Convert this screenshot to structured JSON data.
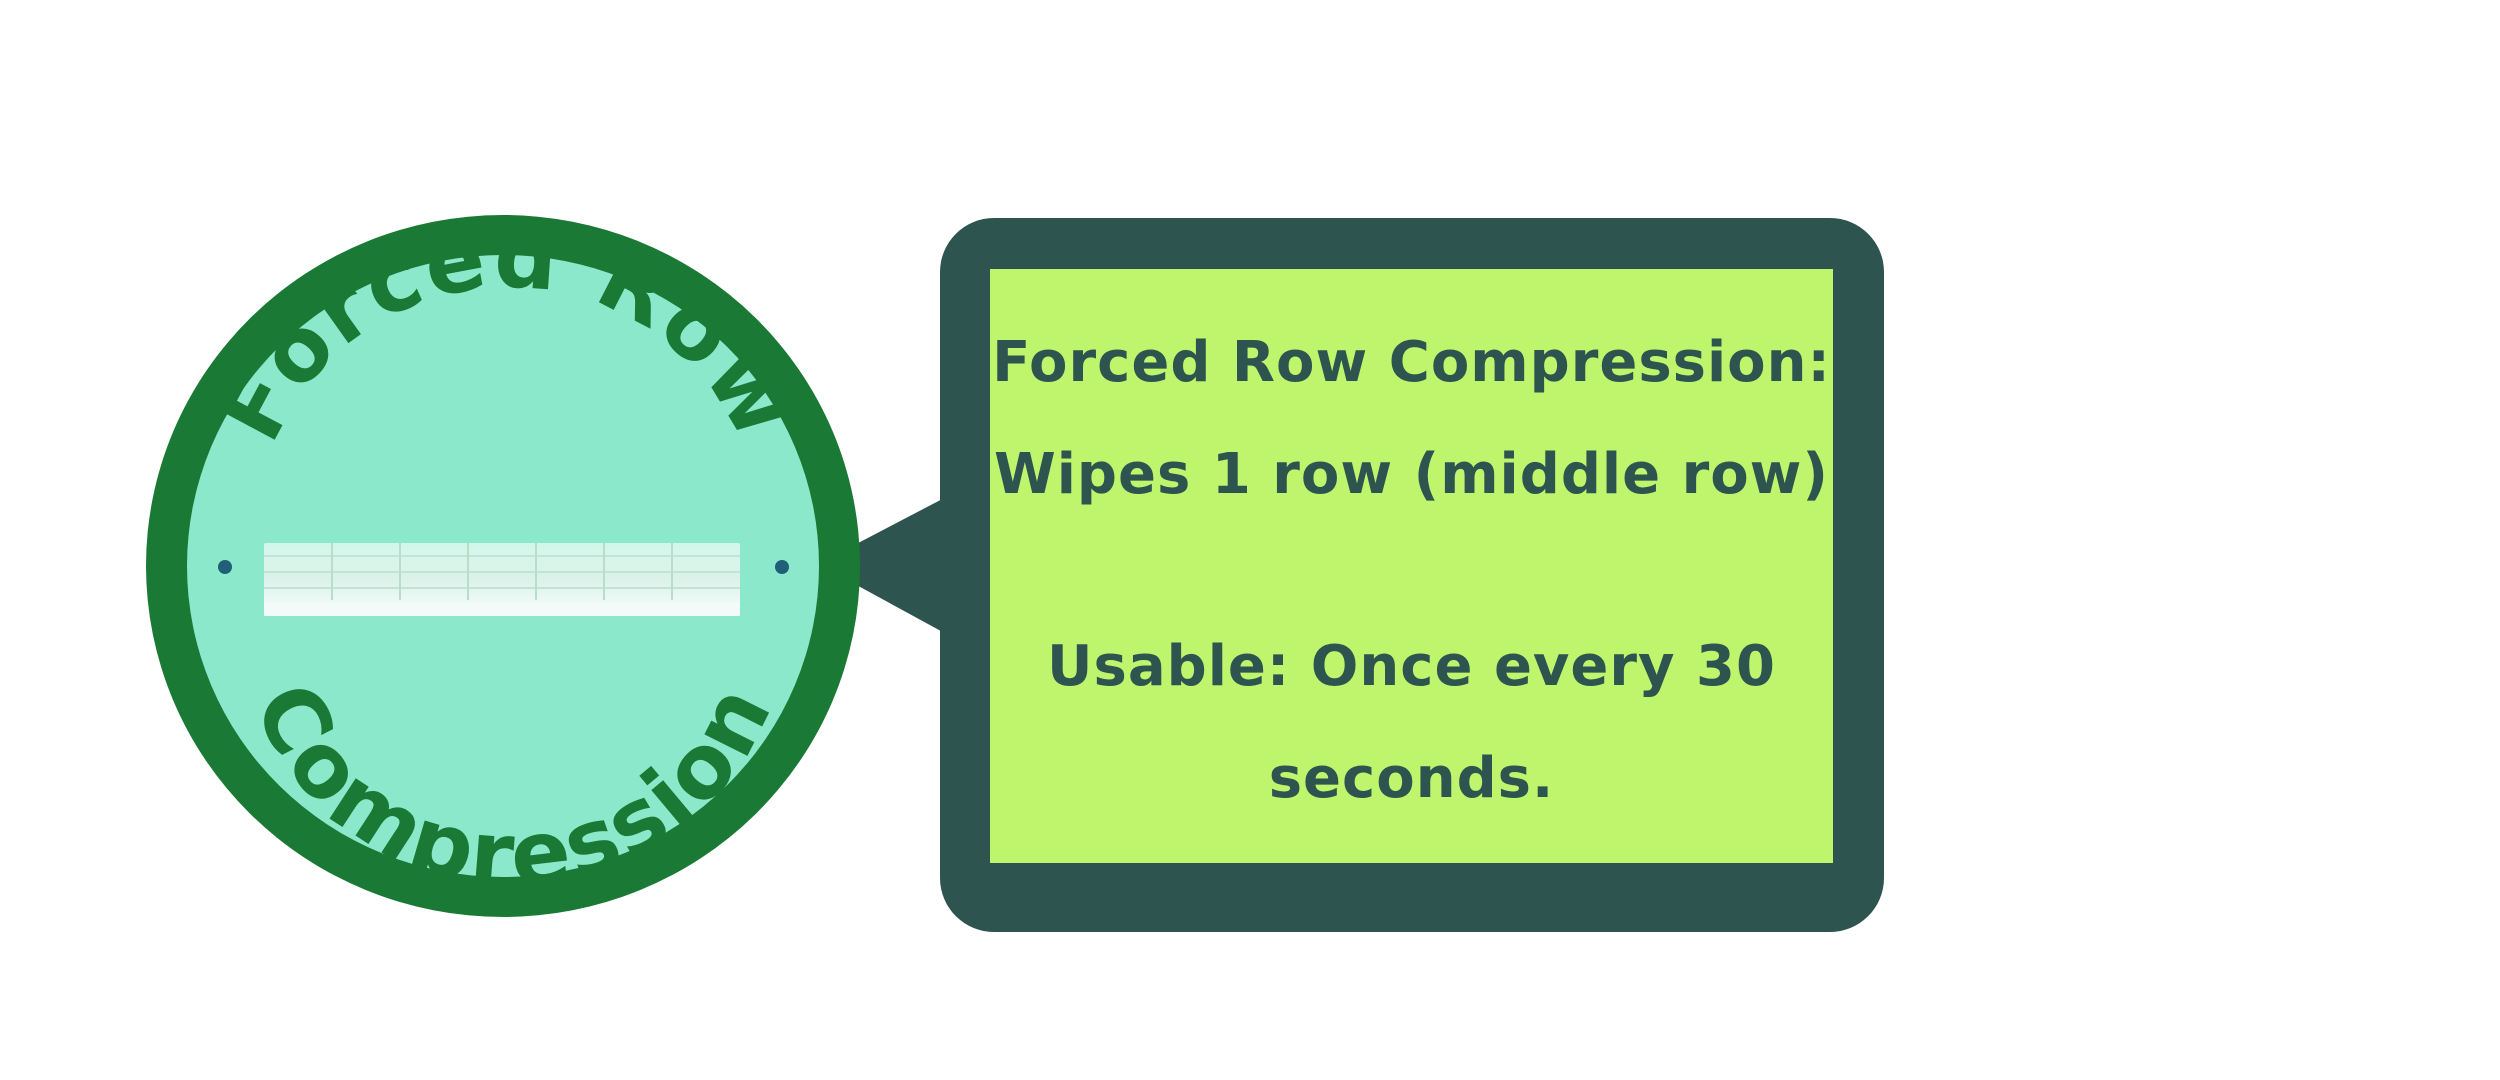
{
  "badge": {
    "title_top": "Forced Row",
    "title_bottom": "Compression",
    "icon": "compressed-row-icon",
    "colors": {
      "ring": "#1a7a35",
      "fill": "#8ce8cb",
      "text": "#1a7a35",
      "dots": "#1f5f78",
      "row_light": "#f0faf6",
      "row_line": "#b9dccd"
    }
  },
  "panel": {
    "title": "Forced Row Compression:",
    "effect": "Wipes 1 row (middle row)",
    "usage_line1": "Usable: Once every 30",
    "usage_line2": "seconds.",
    "colors": {
      "frame": "#2e5450",
      "fill": "#bff56c",
      "text": "#2e5450"
    }
  }
}
